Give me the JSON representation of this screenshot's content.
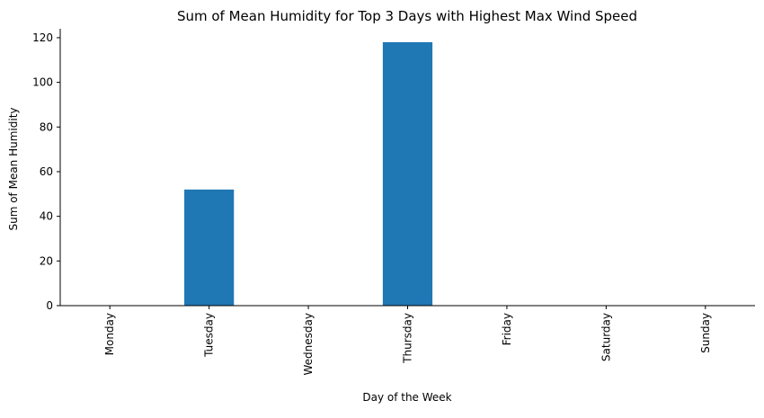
{
  "chart_data": {
    "type": "bar",
    "title": "Sum of Mean Humidity for Top 3 Days with Highest Max Wind Speed",
    "xlabel": "Day of the Week",
    "ylabel": "Sum of Mean Humidity",
    "categories": [
      "Monday",
      "Tuesday",
      "Wednesday",
      "Thursday",
      "Friday",
      "Saturday",
      "Sunday"
    ],
    "values": [
      0,
      52,
      0,
      118,
      0,
      0,
      0
    ],
    "ylim": [
      0,
      124
    ],
    "yticks": [
      0,
      20,
      40,
      60,
      80,
      100,
      120
    ],
    "bar_color": "#1f77b4",
    "grid": false,
    "legend": false
  }
}
